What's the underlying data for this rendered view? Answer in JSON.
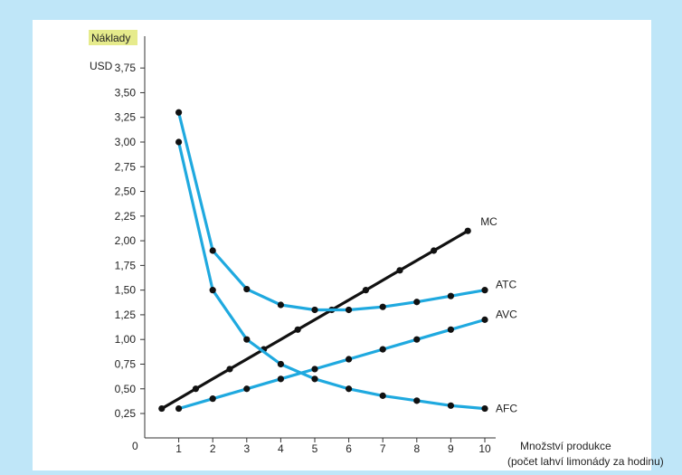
{
  "chart_data": {
    "type": "line",
    "ylabel": "Náklady",
    "yunit": "USD",
    "xlabel_line1": "Množství produkce",
    "xlabel_line2": "(počet lahví limonády za hodinu)",
    "origin_label": "0",
    "xlim": [
      0,
      10.5
    ],
    "ylim": [
      0,
      3.9
    ],
    "x_ticks": [
      "1",
      "2",
      "3",
      "4",
      "5",
      "6",
      "7",
      "8",
      "9",
      "10"
    ],
    "y_ticks": [
      "0,25",
      "0,50",
      "0,75",
      "1,00",
      "1,25",
      "1,50",
      "1,75",
      "2,00",
      "2,25",
      "2,50",
      "2,75",
      "3,00",
      "3,25",
      "3,50",
      "3,75"
    ],
    "grid": false,
    "series": [
      {
        "name": "MC",
        "color": "#111111",
        "x": [
          0.5,
          1,
          1.5,
          2,
          2.5,
          3,
          3.5,
          4,
          4.5,
          5,
          5.5,
          6,
          6.5,
          7,
          7.5,
          8,
          8.5,
          9,
          9.5
        ],
        "y": [
          0.3,
          0.4,
          0.5,
          0.6,
          0.7,
          0.8,
          0.9,
          1.0,
          1.1,
          1.2,
          1.3,
          1.4,
          1.5,
          1.6,
          1.7,
          1.8,
          1.9,
          2.0,
          2.1
        ],
        "markers_x": [
          0.5,
          1.5,
          2.5,
          3.5,
          4.5,
          5.5,
          6.5,
          7.5,
          8.5,
          9.5
        ],
        "markers_y": [
          0.3,
          0.5,
          0.7,
          0.9,
          1.1,
          1.3,
          1.5,
          1.7,
          1.9,
          2.1
        ]
      },
      {
        "name": "ATC",
        "color": "#1fa9df",
        "x": [
          1,
          2,
          3,
          4,
          5,
          6,
          7,
          8,
          9,
          10
        ],
        "y": [
          3.3,
          1.9,
          1.51,
          1.35,
          1.3,
          1.3,
          1.33,
          1.38,
          1.44,
          1.5
        ]
      },
      {
        "name": "AVC",
        "color": "#1fa9df",
        "x": [
          1,
          2,
          3,
          4,
          5,
          6,
          7,
          8,
          9,
          10
        ],
        "y": [
          0.3,
          0.4,
          0.5,
          0.6,
          0.7,
          0.8,
          0.9,
          1.0,
          1.1,
          1.2
        ]
      },
      {
        "name": "AFC",
        "color": "#1fa9df",
        "x": [
          1,
          2,
          3,
          4,
          5,
          6,
          7,
          8,
          9,
          10
        ],
        "y": [
          3.0,
          1.5,
          1.0,
          0.75,
          0.6,
          0.5,
          0.43,
          0.38,
          0.33,
          0.3
        ]
      }
    ],
    "series_labels": [
      "MC",
      "ATC",
      "AVC",
      "AFC"
    ],
    "colors": {
      "background": "#bfe6f8",
      "panel": "#ffffff",
      "ylabel_highlight": "#e6eb8c"
    }
  }
}
